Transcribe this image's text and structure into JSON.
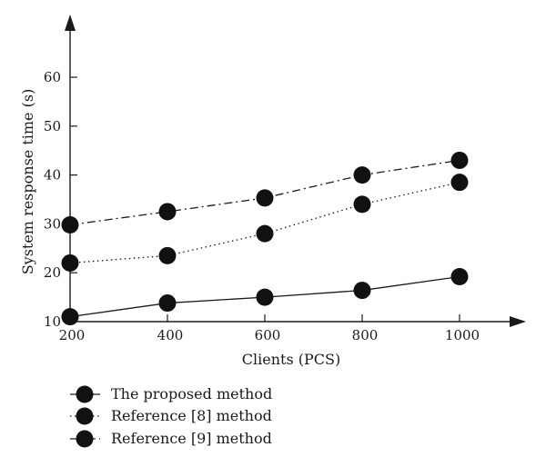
{
  "chart_data": {
    "type": "line",
    "title": "",
    "xlabel": "Clients (PCS)",
    "ylabel": "System response time (s)",
    "x": [
      200,
      400,
      600,
      800,
      1000
    ],
    "xticks": [
      "200",
      "400",
      "600",
      "800",
      "1000"
    ],
    "yticks": [
      "10",
      "20",
      "30",
      "40",
      "50",
      "60"
    ],
    "xlim": [
      200,
      1100
    ],
    "ylim": [
      10,
      70
    ],
    "grid": false,
    "legend_position": "below-left",
    "series": [
      {
        "name": "The proposed method",
        "style": "solid",
        "values": [
          11,
          13.8,
          15,
          16.4,
          19.2
        ]
      },
      {
        "name": "Reference [8] method",
        "style": "dotted",
        "values": [
          22,
          23.5,
          28,
          34,
          38.5
        ]
      },
      {
        "name": "Reference [9] method",
        "style": "dashdot",
        "values": [
          29.8,
          32.5,
          35.3,
          40,
          43
        ]
      }
    ],
    "colors": {
      "line": "#1a1a1a",
      "marker": "#111111"
    }
  }
}
